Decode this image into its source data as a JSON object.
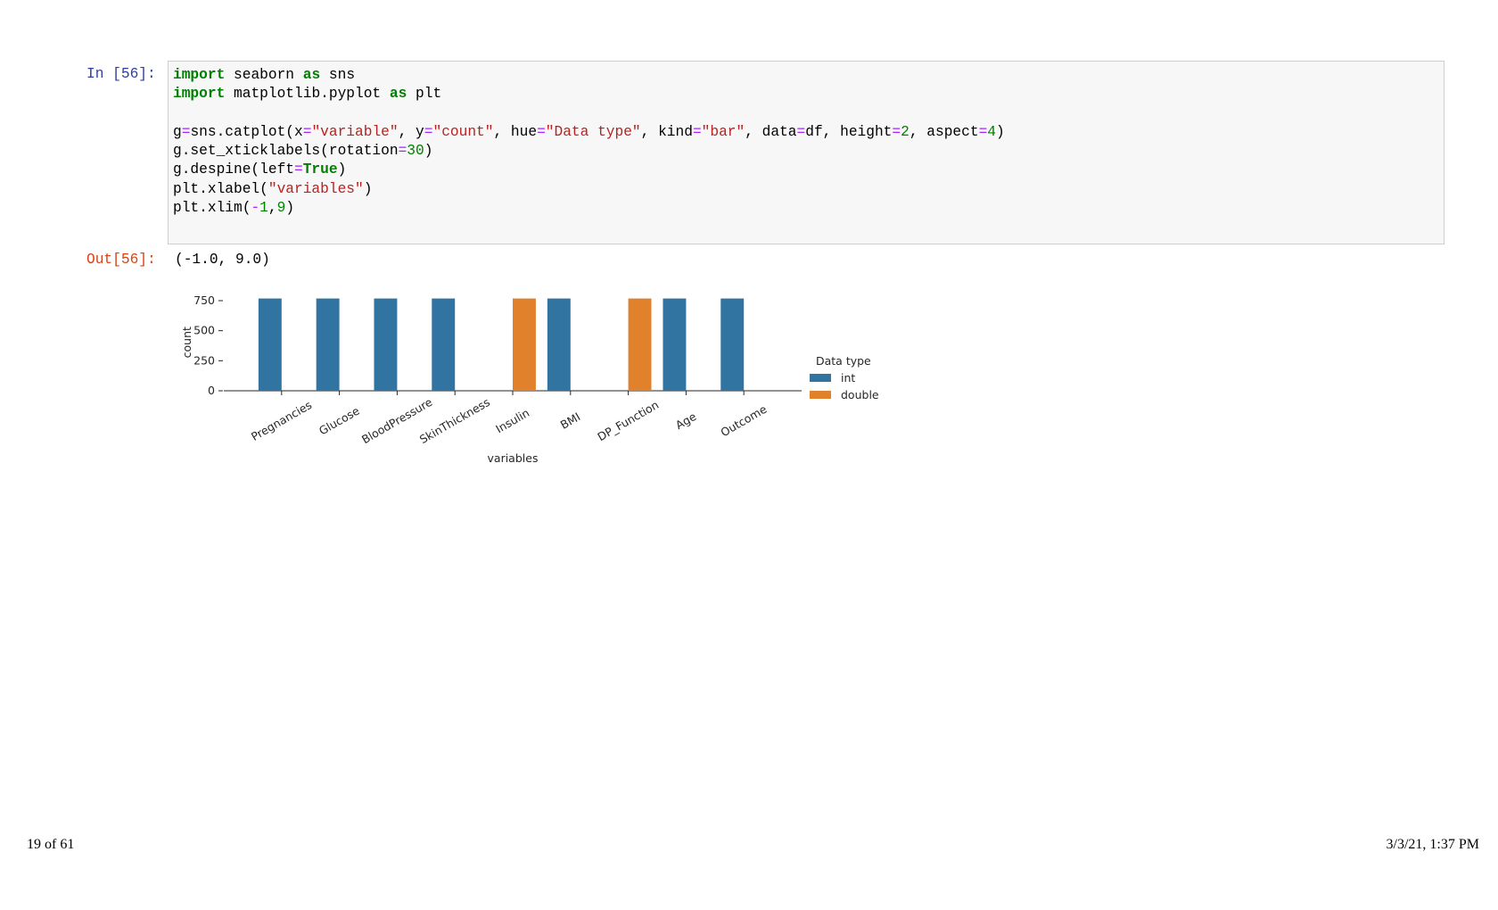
{
  "cell": {
    "in_prompt": "In [56]:",
    "code": [
      [
        {
          "text": "import",
          "color": "#008000",
          "bold": true
        },
        {
          "text": " seaborn "
        },
        {
          "text": "as",
          "color": "#008000",
          "bold": true
        },
        {
          "text": " sns"
        }
      ],
      [
        {
          "text": "import",
          "color": "#008000",
          "bold": true
        },
        {
          "text": " matplotlib.pyplot "
        },
        {
          "text": "as",
          "color": "#008000",
          "bold": true
        },
        {
          "text": " plt"
        }
      ],
      [],
      [
        {
          "text": "g"
        },
        {
          "text": "=",
          "color": "#aa22ff"
        },
        {
          "text": "sns.catplot(x"
        },
        {
          "text": "=",
          "color": "#aa22ff"
        },
        {
          "text": "\"variable\"",
          "color": "#ba2121"
        },
        {
          "text": ", y"
        },
        {
          "text": "=",
          "color": "#aa22ff"
        },
        {
          "text": "\"count\"",
          "color": "#ba2121"
        },
        {
          "text": ", hue"
        },
        {
          "text": "=",
          "color": "#aa22ff"
        },
        {
          "text": "\"Data type\"",
          "color": "#ba2121"
        },
        {
          "text": ", kind"
        },
        {
          "text": "=",
          "color": "#aa22ff"
        },
        {
          "text": "\"bar\"",
          "color": "#ba2121"
        },
        {
          "text": ", data"
        },
        {
          "text": "=",
          "color": "#aa22ff"
        },
        {
          "text": "df, height"
        },
        {
          "text": "=",
          "color": "#aa22ff"
        },
        {
          "text": "2",
          "color": "#008000"
        },
        {
          "text": ", aspect"
        },
        {
          "text": "=",
          "color": "#aa22ff"
        },
        {
          "text": "4",
          "color": "#008000"
        },
        {
          "text": ")"
        }
      ],
      [
        {
          "text": "g.set_xticklabels(rotation"
        },
        {
          "text": "=",
          "color": "#aa22ff"
        },
        {
          "text": "30",
          "color": "#008000"
        },
        {
          "text": ")"
        }
      ],
      [
        {
          "text": "g.despine(left"
        },
        {
          "text": "=",
          "color": "#aa22ff"
        },
        {
          "text": "True",
          "color": "#008000",
          "bold": true
        },
        {
          "text": ")"
        }
      ],
      [
        {
          "text": "plt.xlabel("
        },
        {
          "text": "\"variables\"",
          "color": "#ba2121"
        },
        {
          "text": ")"
        }
      ],
      [
        {
          "text": "plt.xlim("
        },
        {
          "text": "-",
          "color": "#aa22ff"
        },
        {
          "text": "1",
          "color": "#008000"
        },
        {
          "text": ","
        },
        {
          "text": "9",
          "color": "#008000"
        },
        {
          "text": ")"
        }
      ]
    ],
    "out_prompt": "Out[56]:",
    "output": "(-1.0, 9.0)"
  },
  "chart_data": {
    "type": "bar",
    "categories": [
      "Pregnancies",
      "Glucose",
      "BloodPressure",
      "SkinThickness",
      "Insulin",
      "BMI",
      "DP_Function",
      "Age",
      "Outcome"
    ],
    "series": [
      {
        "name": "int",
        "color": "#3274a1",
        "values": [
          768,
          768,
          768,
          768,
          null,
          768,
          null,
          768,
          768
        ]
      },
      {
        "name": "double",
        "color": "#e1812c",
        "values": [
          null,
          null,
          null,
          null,
          768,
          null,
          768,
          null,
          null
        ]
      }
    ],
    "x_label": "variables",
    "y_label": "count",
    "xlim": [
      -1,
      9
    ],
    "ylim": [
      0,
      806.4
    ],
    "yticks": [
      0,
      250,
      500,
      750
    ],
    "legend_title": "Data type",
    "legend": "right"
  },
  "footer": {
    "page": "19 of 61",
    "timestamp": "3/3/21, 1:37 PM"
  }
}
